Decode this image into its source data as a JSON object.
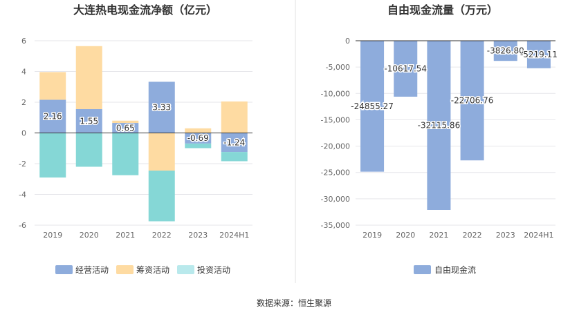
{
  "source": "数据来源：恒生聚源",
  "colors": {
    "operating": "#8eacdc",
    "financing": "#fedba2",
    "investing": "#85d7d6",
    "fcf": "#8eacdc",
    "legend_investing": "#b9e9ec"
  },
  "chart_data": [
    {
      "type": "bar",
      "stacked": true,
      "title": "大连热电现金流净额（亿元）",
      "categories": [
        "2019",
        "2020",
        "2021",
        "2022",
        "2023",
        "2024H1"
      ],
      "ylim": [
        -6,
        6
      ],
      "yticks": [
        -6,
        -4,
        -2,
        0,
        2,
        4,
        6
      ],
      "ytick_labels": [
        "-6",
        "-4",
        "-2",
        "0",
        "2",
        "4",
        "6"
      ],
      "series": [
        {
          "name": "经营活动",
          "values": [
            2.16,
            1.55,
            0.65,
            3.33,
            -0.69,
            -1.24
          ],
          "labels": [
            "2.16",
            "1.55",
            "0.65",
            "3.33",
            "-0.69",
            "-1.24"
          ]
        },
        {
          "name": "筹资活动",
          "values": [
            1.8,
            4.1,
            0.15,
            -2.45,
            0.3,
            2.05
          ]
        },
        {
          "name": "投资活动",
          "values": [
            -2.9,
            -2.2,
            -2.75,
            -3.3,
            -0.3,
            -0.6
          ]
        }
      ],
      "legend": {
        "position": "bottom",
        "items": [
          "经营活动",
          "筹资活动",
          "投资活动"
        ]
      },
      "grid": true
    },
    {
      "type": "bar",
      "title": "自由现金流量（万元）",
      "categories": [
        "2019",
        "2020",
        "2021",
        "2022",
        "2023",
        "2024H1"
      ],
      "ylim": [
        -35000,
        0
      ],
      "yticks": [
        -35000,
        -30000,
        -25000,
        -20000,
        -15000,
        -10000,
        -5000,
        0
      ],
      "ytick_labels": [
        "-35,000",
        "-30,000",
        "-25,000",
        "-20,000",
        "-15,000",
        "-10,000",
        "-5,000",
        "0"
      ],
      "series": [
        {
          "name": "自由现金流",
          "values": [
            -24855.27,
            -10617.54,
            -32115.86,
            -22706.76,
            -3826.8,
            -5219.11
          ],
          "labels": [
            "-24855.27",
            "-10617.54",
            "-32115.86",
            "-22706.76",
            "-3826.80",
            "-5219.11"
          ]
        }
      ],
      "legend": {
        "position": "bottom",
        "items": [
          "自由现金流"
        ]
      },
      "grid": true
    }
  ]
}
